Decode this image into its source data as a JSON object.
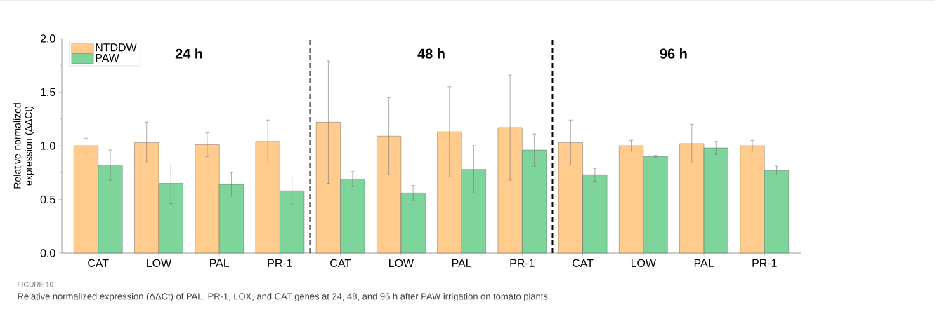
{
  "chart_data": {
    "type": "bar",
    "ylabel": "Relative normalized expression (ΔΔCt)",
    "categories": [
      "CAT",
      "LOW",
      "PAL",
      "PR-1",
      "CAT",
      "LOW",
      "PAL",
      "PR-1",
      "CAT",
      "LOW",
      "PAL",
      "PR-1"
    ],
    "series": [
      {
        "name": "NTDDW",
        "color": "#ffcc8e",
        "values": [
          1.0,
          1.03,
          1.01,
          1.04,
          1.22,
          1.09,
          1.13,
          1.17,
          1.03,
          1.0,
          1.02,
          1.0
        ],
        "errors": [
          0.07,
          0.19,
          0.11,
          0.2,
          0.57,
          0.36,
          0.42,
          0.49,
          0.21,
          0.05,
          0.18,
          0.05
        ]
      },
      {
        "name": "PAW",
        "color": "#7dd59b",
        "values": [
          0.82,
          0.65,
          0.64,
          0.58,
          0.69,
          0.56,
          0.78,
          0.96,
          0.73,
          0.9,
          0.98,
          0.77
        ],
        "errors": [
          0.14,
          0.19,
          0.11,
          0.13,
          0.07,
          0.07,
          0.22,
          0.15,
          0.06,
          0.01,
          0.06,
          0.04
        ]
      }
    ],
    "ylim": [
      0,
      2.0
    ],
    "yticks": [
      {
        "value": 0,
        "label": "0.0"
      },
      0.5,
      {
        "value": 1,
        "label": "1.0"
      },
      1.5,
      {
        "value": 2,
        "label": "2.0"
      }
    ],
    "annotations": [
      "24 h",
      "48 h",
      "96 h",
      "FIGURE 10",
      "Relative normalized expression (ΔΔCt) of PAL, PR-1, LOX, and CAT genes at 24, 48, and 96 h after PAW irrigation on tomato plants."
    ],
    "legend": "top left",
    "grid": false
  }
}
